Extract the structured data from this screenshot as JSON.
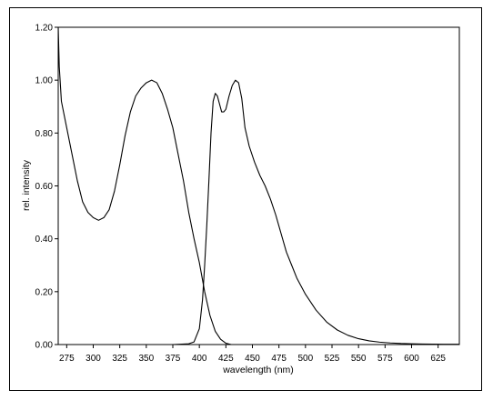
{
  "chart_data": {
    "type": "line",
    "title": "",
    "xlabel": "wavelength (nm)",
    "ylabel": "rel. intensity",
    "xlim": [
      267,
      645
    ],
    "ylim": [
      0,
      1.2
    ],
    "x_ticks": [
      "275",
      "300",
      "325",
      "350",
      "375",
      "400",
      "425",
      "450",
      "475",
      "500",
      "525",
      "550",
      "575",
      "600",
      "625"
    ],
    "y_ticks": [
      "0.00",
      "0.20",
      "0.40",
      "0.60",
      "0.80",
      "1.00",
      "1.20"
    ],
    "grid": false,
    "legend": "none",
    "line_color": "#000000",
    "series": [
      {
        "points": [
          [
            267,
            1.2
          ],
          [
            268,
            1.05
          ],
          [
            270,
            0.92
          ],
          [
            275,
            0.82
          ],
          [
            280,
            0.72
          ],
          [
            285,
            0.62
          ],
          [
            290,
            0.54
          ],
          [
            295,
            0.5
          ],
          [
            300,
            0.48
          ],
          [
            305,
            0.47
          ],
          [
            310,
            0.48
          ],
          [
            315,
            0.51
          ],
          [
            320,
            0.58
          ],
          [
            325,
            0.68
          ],
          [
            330,
            0.79
          ],
          [
            335,
            0.88
          ],
          [
            340,
            0.94
          ],
          [
            345,
            0.97
          ],
          [
            350,
            0.99
          ],
          [
            355,
            1.0
          ],
          [
            360,
            0.99
          ],
          [
            365,
            0.95
          ],
          [
            370,
            0.89
          ],
          [
            375,
            0.82
          ],
          [
            380,
            0.72
          ],
          [
            385,
            0.62
          ],
          [
            390,
            0.5
          ],
          [
            395,
            0.4
          ],
          [
            400,
            0.31
          ],
          [
            405,
            0.2
          ],
          [
            410,
            0.11
          ],
          [
            415,
            0.05
          ],
          [
            420,
            0.02
          ],
          [
            425,
            0.005
          ],
          [
            430,
            0.0
          ]
        ]
      },
      {
        "points": [
          [
            375,
            0.0
          ],
          [
            390,
            0.003
          ],
          [
            395,
            0.01
          ],
          [
            400,
            0.06
          ],
          [
            403,
            0.17
          ],
          [
            405,
            0.3
          ],
          [
            407,
            0.45
          ],
          [
            409,
            0.62
          ],
          [
            411,
            0.8
          ],
          [
            413,
            0.92
          ],
          [
            415,
            0.95
          ],
          [
            417,
            0.94
          ],
          [
            419,
            0.91
          ],
          [
            421,
            0.88
          ],
          [
            423,
            0.88
          ],
          [
            425,
            0.89
          ],
          [
            428,
            0.94
          ],
          [
            431,
            0.98
          ],
          [
            434,
            1.0
          ],
          [
            437,
            0.99
          ],
          [
            440,
            0.93
          ],
          [
            443,
            0.82
          ],
          [
            447,
            0.75
          ],
          [
            452,
            0.69
          ],
          [
            457,
            0.64
          ],
          [
            462,
            0.6
          ],
          [
            467,
            0.55
          ],
          [
            472,
            0.49
          ],
          [
            477,
            0.42
          ],
          [
            482,
            0.35
          ],
          [
            487,
            0.3
          ],
          [
            492,
            0.25
          ],
          [
            500,
            0.19
          ],
          [
            510,
            0.13
          ],
          [
            520,
            0.085
          ],
          [
            530,
            0.055
          ],
          [
            540,
            0.035
          ],
          [
            550,
            0.022
          ],
          [
            560,
            0.014
          ],
          [
            570,
            0.009
          ],
          [
            580,
            0.006
          ],
          [
            590,
            0.004
          ],
          [
            600,
            0.003
          ],
          [
            610,
            0.002
          ],
          [
            620,
            0.0015
          ],
          [
            630,
            0.001
          ],
          [
            640,
            0.001
          ],
          [
            645,
            0.001
          ]
        ]
      }
    ]
  }
}
